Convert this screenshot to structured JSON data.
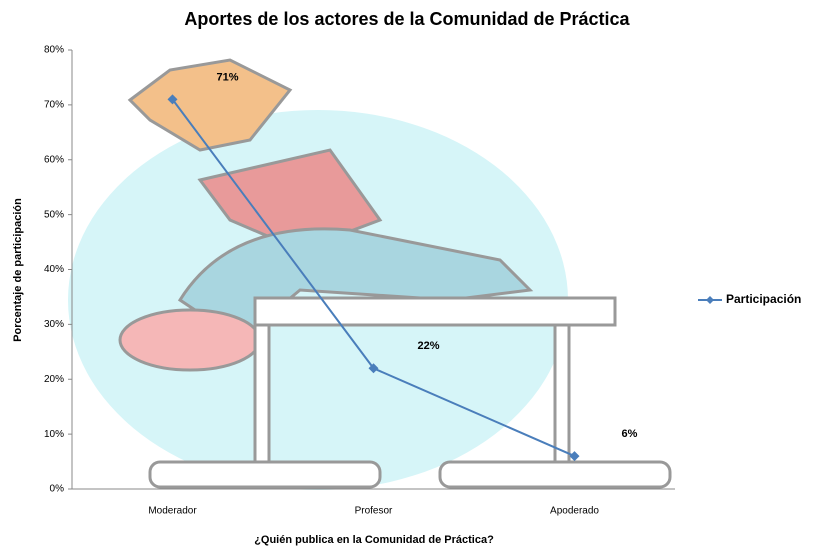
{
  "chart_data": {
    "type": "line",
    "title": "Aportes de los actores de la Comunidad de Práctica",
    "x_label": "¿Quién publica en la Comunidad de Práctica?",
    "y_label": "Porcentaje de participación",
    "categories": [
      "Moderador",
      "Profesor",
      "Apoderado"
    ],
    "series": [
      {
        "name": "Participación",
        "color": "#4a7ebb",
        "values": [
          71,
          22,
          6
        ],
        "value_labels": [
          "71%",
          "22%",
          "6%"
        ]
      }
    ],
    "ylim": [
      0,
      80
    ],
    "yticks": [
      {
        "value": 0,
        "label": "0%"
      },
      {
        "value": 10,
        "label": "10%"
      },
      {
        "value": 20,
        "label": "20%"
      },
      {
        "value": 30,
        "label": "30%"
      },
      {
        "value": 40,
        "label": "40%"
      },
      {
        "value": 50,
        "label": "50%"
      },
      {
        "value": 60,
        "label": "60%"
      },
      {
        "value": 70,
        "label": "70%"
      },
      {
        "value": 80,
        "label": "80%"
      }
    ],
    "legend": "right"
  }
}
